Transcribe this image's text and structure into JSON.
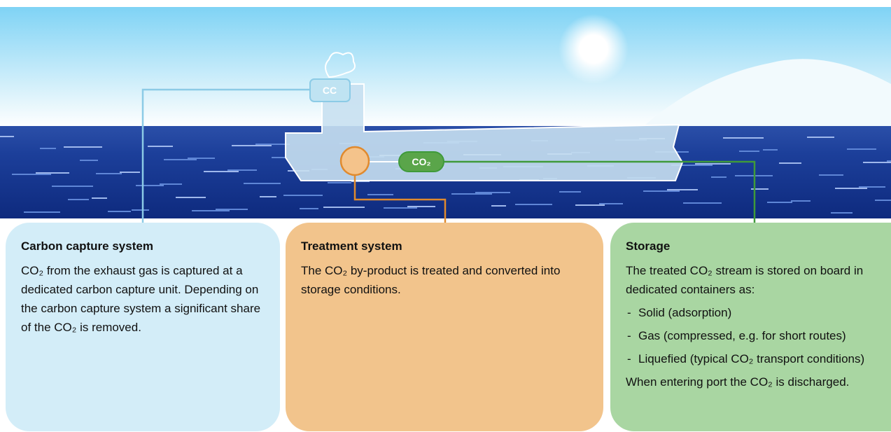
{
  "diagram": {
    "labels": {
      "capture_unit": "CC",
      "storage_unit": "CO₂"
    },
    "panels": [
      {
        "title": "Carbon capture system",
        "paragraphs": [
          "CO₂ from the exhaust gas is captured at a dedicated carbon capture unit. Depending on the carbon capture system a significant share of the CO₂ is removed."
        ]
      },
      {
        "title": "Treatment system",
        "paragraphs": [
          "The CO₂ by-product is treated and converted into storage conditions."
        ]
      },
      {
        "title": "Storage",
        "paragraphs": [
          "The treated CO₂ stream is stored on board in dedicated containers as:"
        ],
        "items": [
          "Solid (adsorption)",
          "Gas (compressed, e.g. for short routes)",
          "Liquefied (typical CO₂ transport conditions)"
        ],
        "closing": "When entering port the CO₂ is discharged."
      }
    ]
  }
}
